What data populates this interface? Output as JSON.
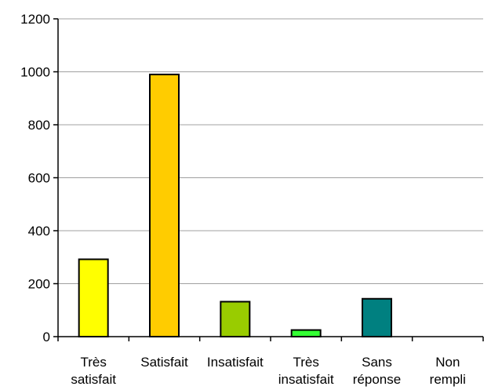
{
  "chart_data": {
    "type": "bar",
    "categories": [
      [
        "Très",
        "satisfait"
      ],
      [
        "Satisfait"
      ],
      [
        "Insatisfait"
      ],
      [
        "Très",
        "insatisfait"
      ],
      [
        "Sans",
        "réponse"
      ],
      [
        "Non",
        "rempli"
      ]
    ],
    "values": [
      292,
      990,
      132,
      25,
      143,
      0
    ],
    "colors": [
      "#FFFF00",
      "#FFCC00",
      "#99CC00",
      "#33FF33",
      "#008080",
      "#FFFFFF"
    ],
    "ylim": [
      0,
      1200
    ],
    "yticks": [
      0,
      200,
      400,
      600,
      800,
      1000,
      1200
    ],
    "grid": true,
    "gridColor": "#a0a0a0",
    "title": "",
    "xlabel": "",
    "ylabel": ""
  }
}
